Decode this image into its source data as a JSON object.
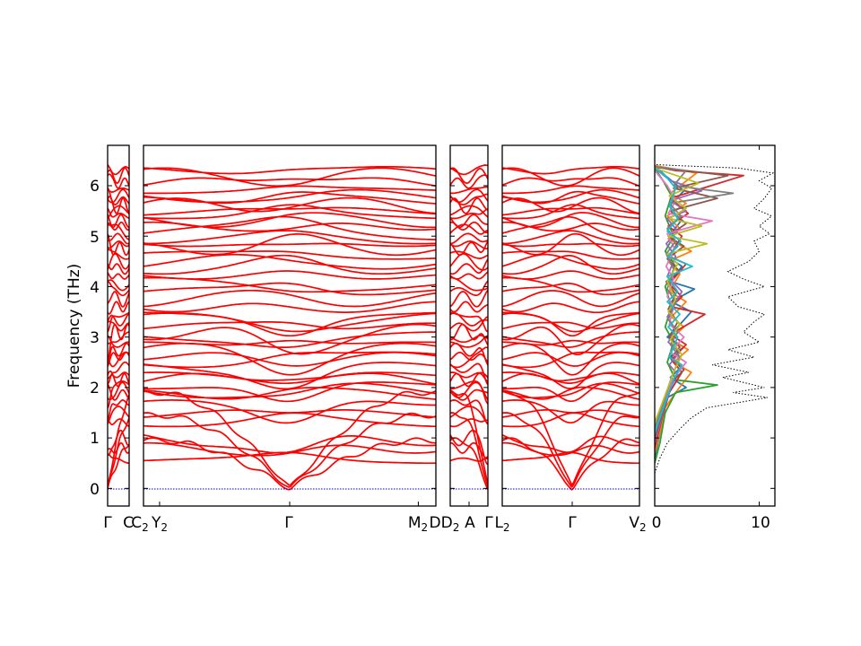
{
  "chart_data": {
    "type": "line",
    "title": "",
    "ylabel": "Frequency (THz)",
    "ylim": [
      -0.35,
      6.8
    ],
    "yticks": [
      "0",
      "1",
      "2",
      "3",
      "4",
      "5",
      "6"
    ],
    "panels": [
      {
        "id": "p1",
        "x_labels": [
          "Γ",
          "C"
        ]
      },
      {
        "id": "p2",
        "x_labels": [
          "C2",
          "Y2",
          "Γ",
          "M2",
          "D"
        ]
      },
      {
        "id": "p3",
        "x_labels": [
          "D2",
          "A",
          "Γ"
        ]
      },
      {
        "id": "p4",
        "x_labels": [
          "L2",
          "Γ",
          "V2"
        ]
      }
    ],
    "band_label_text": {
      "gamma": "Γ",
      "C": "C",
      "C2": "C",
      "Y2": "Y",
      "M2": "M",
      "D": "D",
      "D2": "D",
      "A": "A",
      "L2": "L",
      "V2": "V",
      "sub2": "2"
    },
    "dos_panel": {
      "xlim": [
        0,
        11.5
      ],
      "xticks": [
        "0",
        "10"
      ]
    },
    "series": [
      {
        "name": "band-structure",
        "color": "#ff0000"
      },
      {
        "name": "dos-total",
        "color": "#000000"
      },
      {
        "name": "dos-projected",
        "colors": [
          "#1f77b4",
          "#ff7f0e",
          "#2ca02c",
          "#d62728",
          "#9467bd",
          "#8c564b",
          "#e377c2",
          "#7f7f7f",
          "#bcbd22",
          "#17becf"
        ]
      }
    ],
    "band_levels": [
      0.55,
      0.8,
      1.0,
      1.3,
      1.5,
      1.7,
      1.85,
      1.95,
      2.05,
      2.15,
      2.25,
      2.4,
      2.55,
      2.62,
      2.75,
      2.85,
      3.0,
      3.1,
      3.2,
      3.35,
      3.45,
      3.6,
      3.75,
      3.9,
      4.05,
      4.2,
      4.35,
      4.5,
      4.62,
      4.75,
      4.85,
      4.95,
      5.08,
      5.2,
      5.3,
      5.4,
      5.5,
      5.6,
      5.7,
      5.8,
      5.9,
      6.05,
      6.2,
      6.3
    ],
    "dos_total_points": [
      [
        0.0,
        0.3
      ],
      [
        0.5,
        0.6
      ],
      [
        1.2,
        0.9
      ],
      [
        2.5,
        1.2
      ],
      [
        3.5,
        1.4
      ],
      [
        5.0,
        1.6
      ],
      [
        8.0,
        1.7
      ],
      [
        10.8,
        1.8
      ],
      [
        7.5,
        1.9
      ],
      [
        10.5,
        2.0
      ],
      [
        6.5,
        2.2
      ],
      [
        9.0,
        2.3
      ],
      [
        5.5,
        2.45
      ],
      [
        9.5,
        2.6
      ],
      [
        7.0,
        2.75
      ],
      [
        10.0,
        2.9
      ],
      [
        8.5,
        3.1
      ],
      [
        9.5,
        3.3
      ],
      [
        10.5,
        3.45
      ],
      [
        8.0,
        3.6
      ],
      [
        7.0,
        3.8
      ],
      [
        10.5,
        4.0
      ],
      [
        8.5,
        4.15
      ],
      [
        7.0,
        4.3
      ],
      [
        9.0,
        4.5
      ],
      [
        10.0,
        4.7
      ],
      [
        9.5,
        4.9
      ],
      [
        11.0,
        5.05
      ],
      [
        10.0,
        5.2
      ],
      [
        11.2,
        5.4
      ],
      [
        9.5,
        5.55
      ],
      [
        10.5,
        5.75
      ],
      [
        11.2,
        5.95
      ],
      [
        10.0,
        6.1
      ],
      [
        11.3,
        6.25
      ],
      [
        8.0,
        6.35
      ],
      [
        2.0,
        6.4
      ],
      [
        0.0,
        6.42
      ]
    ],
    "dos_projected_points": [
      [
        [
          0.0,
          0.6
        ],
        [
          0.4,
          1.0
        ],
        [
          0.8,
          1.4
        ],
        [
          1.2,
          1.8
        ],
        [
          3.0,
          2.0
        ],
        [
          1.5,
          2.2
        ],
        [
          2.5,
          2.4
        ],
        [
          1.4,
          2.6
        ],
        [
          2.8,
          2.8
        ],
        [
          1.2,
          3.0
        ],
        [
          2.2,
          3.2
        ],
        [
          3.5,
          3.5
        ],
        [
          1.6,
          3.7
        ],
        [
          3.8,
          3.95
        ],
        [
          1.5,
          4.1
        ],
        [
          2.6,
          4.4
        ],
        [
          1.2,
          4.6
        ],
        [
          2.2,
          4.8
        ],
        [
          1.4,
          5.0
        ],
        [
          2.5,
          5.3
        ],
        [
          1.4,
          5.6
        ],
        [
          2.8,
          5.9
        ],
        [
          1.0,
          6.2
        ],
        [
          0.0,
          6.4
        ]
      ],
      [
        [
          0.0,
          0.7
        ],
        [
          0.6,
          1.2
        ],
        [
          1.0,
          1.6
        ],
        [
          2.0,
          1.9
        ],
        [
          3.5,
          2.3
        ],
        [
          1.8,
          2.5
        ],
        [
          3.2,
          2.75
        ],
        [
          1.5,
          2.95
        ],
        [
          2.8,
          3.2
        ],
        [
          1.6,
          3.4
        ],
        [
          3.0,
          3.7
        ],
        [
          1.4,
          3.9
        ],
        [
          2.4,
          4.25
        ],
        [
          1.3,
          4.5
        ],
        [
          3.5,
          4.7
        ],
        [
          1.3,
          4.95
        ],
        [
          2.4,
          5.15
        ],
        [
          1.2,
          5.4
        ],
        [
          3.0,
          5.65
        ],
        [
          1.5,
          5.85
        ],
        [
          4.0,
          6.25
        ],
        [
          0.0,
          6.4
        ]
      ],
      [
        [
          0.0,
          0.5
        ],
        [
          0.5,
          0.9
        ],
        [
          1.0,
          1.5
        ],
        [
          2.0,
          1.9
        ],
        [
          6.0,
          2.05
        ],
        [
          2.0,
          2.15
        ],
        [
          1.2,
          2.5
        ],
        [
          1.8,
          2.9
        ],
        [
          1.0,
          3.2
        ],
        [
          1.6,
          3.6
        ],
        [
          1.0,
          4.0
        ],
        [
          2.0,
          4.4
        ],
        [
          1.0,
          4.7
        ],
        [
          1.8,
          5.0
        ],
        [
          1.0,
          5.4
        ],
        [
          1.6,
          5.8
        ],
        [
          0.8,
          6.1
        ],
        [
          0.0,
          6.35
        ]
      ],
      [
        [
          0.0,
          0.8
        ],
        [
          0.7,
          1.4
        ],
        [
          1.4,
          1.9
        ],
        [
          2.6,
          2.3
        ],
        [
          1.6,
          2.55
        ],
        [
          3.0,
          2.85
        ],
        [
          1.5,
          3.05
        ],
        [
          4.8,
          3.45
        ],
        [
          1.6,
          3.6
        ],
        [
          2.6,
          3.8
        ],
        [
          1.4,
          4.05
        ],
        [
          3.0,
          4.45
        ],
        [
          1.4,
          4.6
        ],
        [
          2.6,
          5.0
        ],
        [
          1.3,
          5.2
        ],
        [
          3.2,
          5.45
        ],
        [
          1.5,
          5.75
        ],
        [
          8.5,
          6.2
        ],
        [
          2.0,
          6.3
        ],
        [
          0.0,
          6.38
        ]
      ],
      [
        [
          0.0,
          0.9
        ],
        [
          0.8,
          1.5
        ],
        [
          1.5,
          2.0
        ],
        [
          2.2,
          2.25
        ],
        [
          1.4,
          2.45
        ],
        [
          2.4,
          2.7
        ],
        [
          1.3,
          2.9
        ],
        [
          2.0,
          3.15
        ],
        [
          1.2,
          3.4
        ],
        [
          2.6,
          3.9
        ],
        [
          1.2,
          4.2
        ],
        [
          2.0,
          4.6
        ],
        [
          1.1,
          4.85
        ],
        [
          2.2,
          5.1
        ],
        [
          1.2,
          5.35
        ],
        [
          3.0,
          5.5
        ],
        [
          1.5,
          5.7
        ],
        [
          4.5,
          5.9
        ],
        [
          1.5,
          6.1
        ],
        [
          0.0,
          6.35
        ]
      ],
      [
        [
          0.0,
          1.0
        ],
        [
          0.9,
          1.6
        ],
        [
          1.6,
          2.1
        ],
        [
          2.8,
          2.35
        ],
        [
          1.6,
          2.6
        ],
        [
          2.4,
          2.8
        ],
        [
          1.4,
          3.0
        ],
        [
          2.2,
          3.3
        ],
        [
          1.3,
          3.55
        ],
        [
          2.0,
          3.85
        ],
        [
          1.1,
          4.1
        ],
        [
          2.4,
          4.3
        ],
        [
          1.2,
          4.55
        ],
        [
          2.8,
          4.8
        ],
        [
          1.3,
          5.0
        ],
        [
          3.0,
          5.25
        ],
        [
          1.5,
          5.5
        ],
        [
          6.0,
          5.75
        ],
        [
          1.8,
          5.95
        ],
        [
          7.0,
          6.2
        ],
        [
          0.0,
          6.37
        ]
      ],
      [
        [
          0.0,
          1.1
        ],
        [
          0.9,
          1.7
        ],
        [
          1.7,
          2.15
        ],
        [
          3.0,
          2.5
        ],
        [
          1.5,
          2.7
        ],
        [
          2.8,
          3.0
        ],
        [
          1.4,
          3.25
        ],
        [
          1.8,
          3.6
        ],
        [
          1.2,
          3.8
        ],
        [
          1.8,
          4.15
        ],
        [
          1.1,
          4.4
        ],
        [
          1.9,
          4.75
        ],
        [
          1.2,
          5.05
        ],
        [
          5.5,
          5.3
        ],
        [
          1.3,
          5.45
        ],
        [
          2.0,
          5.7
        ],
        [
          1.2,
          6.0
        ],
        [
          0.0,
          6.3
        ]
      ],
      [
        [
          0.0,
          1.2
        ],
        [
          1.0,
          1.8
        ],
        [
          1.6,
          2.2
        ],
        [
          2.4,
          2.6
        ],
        [
          1.5,
          2.85
        ],
        [
          2.2,
          3.1
        ],
        [
          1.3,
          3.35
        ],
        [
          2.0,
          3.7
        ],
        [
          1.2,
          3.95
        ],
        [
          1.8,
          4.35
        ],
        [
          1.1,
          4.65
        ],
        [
          2.0,
          4.9
        ],
        [
          1.2,
          5.15
        ],
        [
          2.5,
          5.4
        ],
        [
          1.4,
          5.65
        ],
        [
          7.5,
          5.85
        ],
        [
          1.8,
          6.0
        ],
        [
          3.0,
          6.3
        ],
        [
          0.0,
          6.38
        ]
      ],
      [
        [
          0.0,
          1.3
        ],
        [
          1.0,
          1.85
        ],
        [
          1.8,
          2.3
        ],
        [
          2.6,
          2.65
        ],
        [
          1.5,
          2.95
        ],
        [
          2.4,
          3.25
        ],
        [
          1.3,
          3.5
        ],
        [
          2.0,
          3.75
        ],
        [
          1.2,
          4.1
        ],
        [
          2.2,
          4.45
        ],
        [
          1.2,
          4.65
        ],
        [
          5.0,
          4.85
        ],
        [
          1.3,
          5.0
        ],
        [
          4.5,
          5.2
        ],
        [
          1.4,
          5.35
        ],
        [
          3.0,
          5.55
        ],
        [
          1.4,
          5.8
        ],
        [
          4.2,
          6.05
        ],
        [
          0.0,
          6.35
        ]
      ],
      [
        [
          0.0,
          1.1
        ],
        [
          1.0,
          1.7
        ],
        [
          1.9,
          2.2
        ],
        [
          2.6,
          2.45
        ],
        [
          1.4,
          2.6
        ],
        [
          2.2,
          3.0
        ],
        [
          1.3,
          3.2
        ],
        [
          2.4,
          3.45
        ],
        [
          1.2,
          3.7
        ],
        [
          2.2,
          3.9
        ],
        [
          1.2,
          4.2
        ],
        [
          3.6,
          4.4
        ],
        [
          1.3,
          4.6
        ],
        [
          2.5,
          4.9
        ],
        [
          1.2,
          5.1
        ],
        [
          2.2,
          5.35
        ],
        [
          1.4,
          5.6
        ],
        [
          2.0,
          5.95
        ],
        [
          1.0,
          6.2
        ],
        [
          0.0,
          6.35
        ]
      ]
    ]
  }
}
